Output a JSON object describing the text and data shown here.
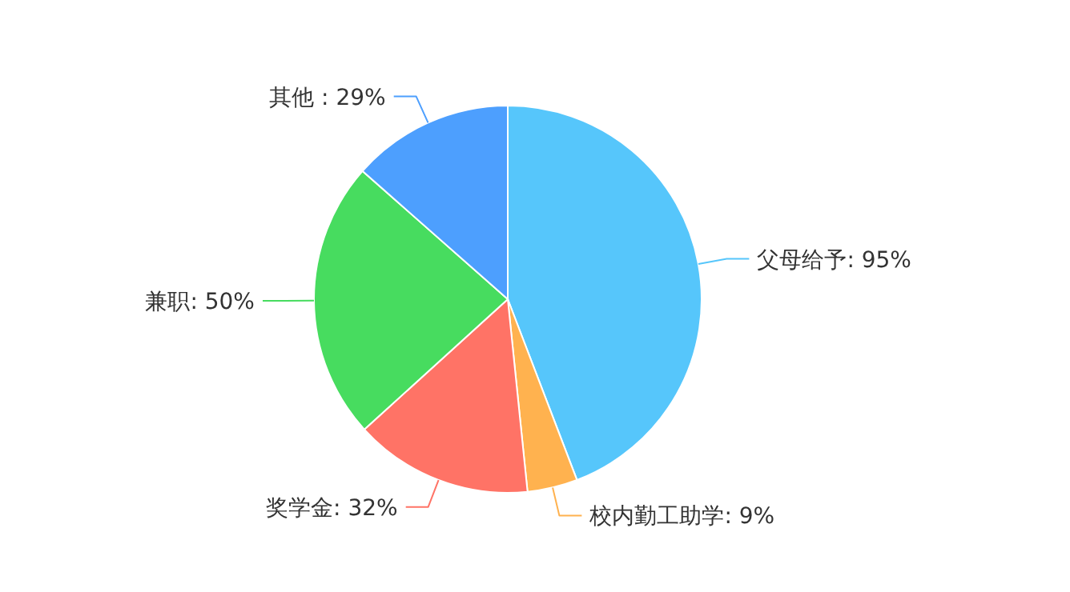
{
  "chart_data": {
    "type": "pie",
    "categories": [
      "父母给予",
      "校内勤工助学",
      "奖学金",
      "兼职",
      "其他"
    ],
    "values": [
      95,
      9,
      32,
      50,
      29
    ],
    "colors": [
      "#56c6fb",
      "#ffb24f",
      "#ff7366",
      "#47dc5f",
      "#4d9ffe"
    ],
    "value_labels": [
      ": 95%",
      ": 9%",
      ": 32%",
      ": 50%",
      " : 29%"
    ],
    "legend": false
  }
}
